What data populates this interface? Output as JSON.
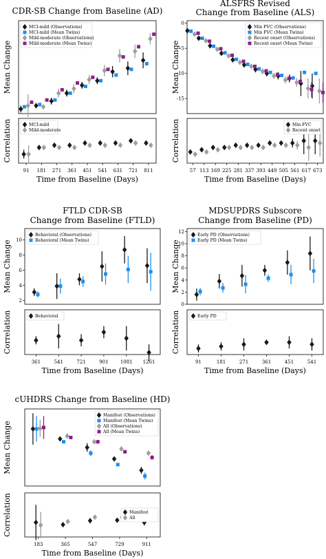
{
  "colors": {
    "black": "#1a1a1a",
    "blue": "#1f8fef",
    "gray": "#9e9e9e",
    "purple": "#8c1f8c"
  },
  "chart_data": [
    {
      "id": "ad",
      "type": "scatter",
      "title": [
        "CDR-SB Change from Baseline (AD)"
      ],
      "xlabel": "Time from Baseline (Days)",
      "ylabel": "Mean Change",
      "ylabel2": "Correlation",
      "categories": [
        "91",
        "181",
        "271",
        "361",
        "451",
        "541",
        "631",
        "721",
        "811"
      ],
      "ylim": [
        0,
        4.1
      ],
      "yticks": [],
      "ylim2": [
        0,
        1
      ],
      "yticks2": [],
      "legend": "top-left",
      "legend2": "top-left",
      "series": [
        {
          "name": "MCI-mild (Observations)",
          "color": "black",
          "marker": "D",
          "values": [
            0.2,
            0.35,
            0.55,
            0.9,
            1.25,
            1.45,
            1.85,
            2.0,
            2.35
          ],
          "err": [
            0.15,
            0.1,
            0.15,
            0.15,
            0.15,
            0.15,
            0.25,
            0.3,
            0.35
          ]
        },
        {
          "name": "MCI-mild (Mean Twins)",
          "color": "blue",
          "marker": "s",
          "values": [
            0.3,
            0.4,
            0.6,
            0.9,
            1.2,
            1.45,
            1.7,
            1.95,
            2.2
          ],
          "err": [
            0,
            0,
            0,
            0,
            0,
            0,
            0,
            0,
            0
          ]
        },
        {
          "name": "Mild-moderate (Observations)",
          "color": "gray",
          "marker": "D",
          "values": [
            0.35,
            0.3,
            0.9,
            1.1,
            1.5,
            1.9,
            2.55,
            2.75,
            3.3
          ],
          "err": [
            0.5,
            0.1,
            0.2,
            0.2,
            0.2,
            0.25,
            0.3,
            0.3,
            0.25
          ]
        },
        {
          "name": "Mild-moderate (Mean Twins)",
          "color": "purple",
          "marker": "s",
          "values": [
            0.5,
            0.6,
            1.05,
            1.35,
            1.6,
            1.95,
            2.5,
            2.95,
            3.5
          ],
          "err": [
            0,
            0,
            0,
            0,
            0,
            0,
            0,
            0,
            0
          ]
        }
      ],
      "correlation": [
        {
          "name": "MCI-mild",
          "color": "black",
          "values": [
            0.2,
            0.35,
            0.4,
            0.4,
            0.45,
            0.45,
            0.45,
            0.5,
            0.45
          ],
          "err": [
            0.1,
            0.05,
            0.05,
            0.05,
            0.05,
            0.05,
            0.05,
            0.05,
            0.05
          ]
        },
        {
          "name": "Mild-moderate",
          "color": "gray",
          "values": [
            0.2,
            0.35,
            0.35,
            0.35,
            0.4,
            0.4,
            0.4,
            0.45,
            0.4
          ],
          "err": [
            0.2,
            0.05,
            0.05,
            0.05,
            0.05,
            0.05,
            0.05,
            0.05,
            0.05
          ]
        }
      ]
    },
    {
      "id": "als",
      "type": "scatter",
      "title": [
        "ALSFRS Revised",
        "Change from Baseline (ALS)"
      ],
      "xlabel": "Time from Baseline (Days)",
      "ylabel": "Mean Change",
      "ylabel2": "Correlation",
      "categories": [
        "57",
        "113",
        "169",
        "225",
        "281",
        "337",
        "393",
        "449",
        "505",
        "561",
        "617",
        "673"
      ],
      "ylim": [
        -18,
        0.5
      ],
      "yticks": [
        0,
        -5,
        -10,
        -15
      ],
      "ylim2": [
        0,
        1
      ],
      "yticks2": [],
      "legend": "top-right",
      "legend2": "top-right",
      "series": [
        {
          "name": "Min FVC (Observations)",
          "color": "black",
          "marker": "D",
          "values": [
            -1.5,
            -3.0,
            -4.5,
            -6.0,
            -7.3,
            -8.3,
            -9.2,
            -10.0,
            -10.5,
            -11.0,
            -12.0,
            -12.5
          ],
          "err": [
            0.3,
            0.3,
            0.4,
            0.4,
            0.5,
            0.5,
            0.6,
            0.6,
            0.7,
            0.8,
            2.5,
            2.5
          ]
        },
        {
          "name": "Min FVC (Mean Twins)",
          "color": "blue",
          "marker": "s",
          "values": [
            -1.6,
            -3.0,
            -4.6,
            -5.9,
            -7.2,
            -8.2,
            -9.1,
            -9.8,
            -10.4,
            -10.9,
            -9.8,
            -10.0
          ],
          "err": [
            0,
            0,
            0,
            0,
            0,
            0,
            0,
            0,
            0,
            0,
            0,
            0
          ]
        },
        {
          "name": "Recent onset (Observations)",
          "color": "gray",
          "marker": "D",
          "values": [
            -2.2,
            -3.5,
            -5.2,
            -6.5,
            -7.8,
            -8.6,
            -9.6,
            -10.5,
            -11.3,
            -11.8,
            -13.0,
            -13.5
          ],
          "err": [
            0.3,
            0.3,
            0.4,
            0.4,
            0.5,
            0.5,
            0.6,
            0.6,
            0.7,
            0.9,
            2.0,
            2.5
          ]
        },
        {
          "name": "Recent onset (Mean Twins)",
          "color": "purple",
          "marker": "s",
          "values": [
            -2.0,
            -3.6,
            -5.1,
            -6.4,
            -7.6,
            -8.6,
            -9.5,
            -10.2,
            -11.0,
            -11.6,
            -13.2,
            -13.8
          ],
          "err": [
            0,
            0,
            0,
            0,
            0,
            0,
            0,
            0,
            0,
            0,
            1.5,
            2.0
          ]
        }
      ],
      "correlation": [
        {
          "name": "Min FVC",
          "color": "black",
          "values": [
            0.25,
            0.3,
            0.35,
            0.35,
            0.4,
            0.4,
            0.4,
            0.45,
            0.45,
            0.45,
            0.5,
            0.5
          ],
          "err": [
            0.05,
            0.05,
            0.05,
            0.05,
            0.05,
            0.05,
            0.05,
            0.05,
            0.05,
            0.1,
            0.3,
            0.3
          ]
        },
        {
          "name": "Recent onset",
          "color": "gray",
          "values": [
            0.2,
            0.25,
            0.3,
            0.35,
            0.35,
            0.35,
            0.35,
            0.4,
            0.4,
            0.4,
            0.35,
            0.45
          ],
          "err": [
            0.05,
            0.05,
            0.05,
            0.05,
            0.05,
            0.05,
            0.05,
            0.05,
            0.05,
            0.1,
            0.3,
            0.3
          ]
        }
      ]
    },
    {
      "id": "ftld",
      "type": "scatter",
      "title": [
        "FTLD CDR-SB",
        "Change from Baseline (FTLD)"
      ],
      "xlabel": "Time from Baseline (Days)",
      "ylabel": "Mean Change",
      "ylabel2": "Correlation",
      "categories": [
        "361",
        "541",
        "721",
        "901",
        "1081",
        "1261"
      ],
      "ylim": [
        1.5,
        11.5
      ],
      "yticks": [
        2,
        4,
        6,
        8,
        10
      ],
      "ylim2": [
        -0.1,
        1
      ],
      "yticks2": [],
      "legend": "top-left",
      "legend2": "top-left",
      "series": [
        {
          "name": "Behavioral (Observations)",
          "color": "black",
          "marker": "D",
          "values": [
            3.1,
            3.9,
            4.8,
            6.5,
            8.7,
            6.6
          ],
          "err": [
            0.5,
            1.7,
            0.8,
            2.0,
            1.8,
            2.3
          ]
        },
        {
          "name": "Behavioral (Mean Twins)",
          "color": "blue",
          "marker": "s",
          "values": [
            2.8,
            3.9,
            4.5,
            5.5,
            6.1,
            5.8
          ],
          "err": [
            0.4,
            1.0,
            0.7,
            1.4,
            1.8,
            2.5
          ]
        }
      ],
      "correlation": [
        {
          "name": "Behavioral",
          "color": "black",
          "values": [
            0.25,
            0.35,
            0.25,
            0.45,
            0.3,
            -0.05
          ],
          "err": [
            0.1,
            0.3,
            0.15,
            0.15,
            0.3,
            0.2
          ]
        }
      ]
    },
    {
      "id": "pd",
      "type": "scatter",
      "title": [
        "MDSUPDRS Subscore",
        "Change from Baseline (PD)"
      ],
      "xlabel": "Time from Baseline (Days)",
      "ylabel": "Mean Change",
      "ylabel2": "Correlation",
      "categories": [
        "91",
        "181",
        "271",
        "361",
        "451",
        "541"
      ],
      "ylim": [
        0,
        12.5
      ],
      "yticks": [
        0,
        2,
        4,
        6,
        8,
        10,
        12
      ],
      "ylim2": [
        -0.1,
        1
      ],
      "yticks2": [],
      "legend": "top-left",
      "legend2": "top-left",
      "series": [
        {
          "name": "Early PD (Observations)",
          "color": "black",
          "marker": "D",
          "values": [
            1.6,
            3.8,
            4.7,
            5.6,
            6.9,
            8.4
          ],
          "err": [
            1.0,
            1.2,
            1.8,
            0.9,
            2.0,
            2.8
          ]
        },
        {
          "name": "Early PD (Mean Twins)",
          "color": "blue",
          "marker": "s",
          "values": [
            2.1,
            2.7,
            3.3,
            4.3,
            4.9,
            5.5
          ],
          "err": [
            0.6,
            0.8,
            1.5,
            0.6,
            1.6,
            2.0
          ]
        }
      ],
      "correlation": [
        {
          "name": "Early PD",
          "color": "black",
          "values": [
            0.05,
            0.1,
            0.15,
            0.2,
            0.2,
            0.15
          ],
          "err": [
            0.1,
            0.1,
            0.15,
            0.05,
            0.15,
            0.15
          ]
        }
      ]
    },
    {
      "id": "hd",
      "type": "scatter",
      "title": [
        "cUHDRS Change from Baseline (HD)"
      ],
      "xlabel": "Time from Baseline (Days)",
      "ylabel": "Mean Change",
      "ylabel2": "Correlation",
      "categories": [
        "183",
        "365",
        "547",
        "729",
        "911"
      ],
      "ylim": [
        -2.6,
        0.1
      ],
      "yticks": [],
      "ylim2": [
        0,
        1
      ],
      "yticks2": [],
      "legend": "top-right",
      "legend2": "right",
      "series": [
        {
          "name": "Manifest (Observations)",
          "color": "black",
          "marker": "D",
          "values": [
            -0.6,
            -0.95,
            -1.25,
            -1.65,
            -2.05
          ],
          "err": [
            0.55,
            0.05,
            0.15,
            0.05,
            0.12
          ]
        },
        {
          "name": "Manifest (Mean Twins)",
          "color": "blue",
          "marker": "s",
          "values": [
            -0.6,
            -1.05,
            -1.45,
            -1.85,
            -2.25
          ],
          "err": [
            0.45,
            0.03,
            0.1,
            0.03,
            0.12
          ]
        },
        {
          "name": "All (Observations)",
          "color": "gray",
          "marker": "D",
          "values": [
            -0.58,
            -0.85,
            -1.05,
            -1.3,
            -1.45
          ],
          "err": [
            0.3,
            0.05,
            0.06,
            0.05,
            0.08
          ]
        },
        {
          "name": "All (Mean Twins)",
          "color": "purple",
          "marker": "s",
          "values": [
            -0.55,
            -0.9,
            -1.05,
            -1.4,
            -1.6
          ],
          "err": [
            0.4,
            0.05,
            0.06,
            0.05,
            0.08
          ]
        }
      ],
      "correlation": [
        {
          "name": "Manifest",
          "color": "black",
          "values": [
            0.33,
            0.28,
            0.37,
            0.38,
            0.33
          ],
          "err": [
            0.4,
            0.02,
            0.06,
            0.04,
            0.07
          ]
        },
        {
          "name": "All",
          "color": "gray",
          "values": [
            0.27,
            0.35,
            0.45,
            0.45,
            0.5
          ],
          "err": [
            0.3,
            0.02,
            0.04,
            0.03,
            0.04
          ]
        }
      ]
    }
  ]
}
